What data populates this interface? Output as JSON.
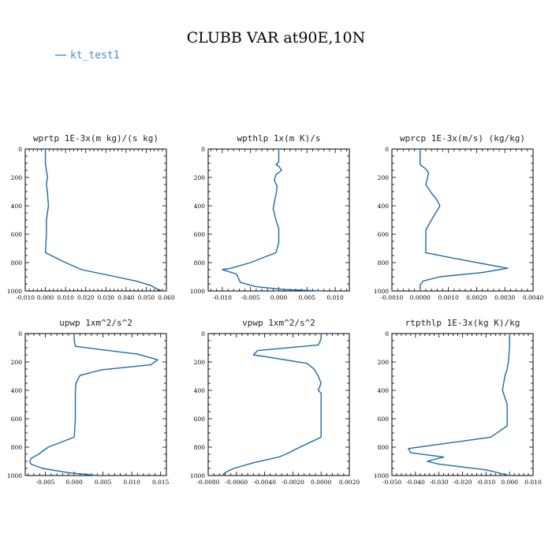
{
  "figure": {
    "title": "CLUBB VAR at90E,10N",
    "line_color": "#1f6aa8",
    "legend": [
      {
        "label": "kt_test1",
        "color": "#4a8fc4"
      }
    ]
  },
  "chart_data": [
    {
      "type": "line",
      "title": "wprtp  1E-3x(m kg)/(s kg)",
      "xlim": [
        -0.01,
        0.06
      ],
      "ylim": [
        0,
        1000
      ],
      "y_inverted": true,
      "x_ticks": [
        -0.01,
        0.0,
        0.01,
        0.02,
        0.03,
        0.04,
        0.05,
        0.06
      ],
      "x_tick_labels": [
        "-0.010",
        "0.000",
        "0.010",
        "0.020",
        "0.030",
        "0.040",
        "0.050",
        "0.060"
      ],
      "y_ticks": [
        0,
        200,
        400,
        600,
        800,
        1000
      ],
      "y_tick_labels": [
        "0",
        "200",
        "400",
        "600",
        "800",
        "1000"
      ],
      "series": [
        {
          "name": "kt_test1",
          "x": [
            0.0,
            0.0,
            0.0005,
            0.001,
            0.0005,
            0.001,
            0.0015,
            0.001,
            0.0005,
            0.0005,
            0.0,
            0.01,
            0.018,
            0.035,
            0.045,
            0.052,
            0.056,
            0.058
          ],
          "y": [
            0,
            100,
            150,
            200,
            250,
            300,
            400,
            450,
            500,
            600,
            730,
            800,
            850,
            900,
            930,
            960,
            990,
            1000
          ]
        }
      ]
    },
    {
      "type": "line",
      "title": "wpthlp  1x(m K)/s",
      "xlim": [
        -0.0125,
        0.0125
      ],
      "ylim": [
        0,
        1000
      ],
      "y_inverted": true,
      "x_ticks": [
        -0.01,
        -0.005,
        0.0,
        0.005,
        0.01
      ],
      "x_tick_labels": [
        "-0.010",
        "-0.005",
        "0.000",
        "0.005",
        "0.010"
      ],
      "y_ticks": [
        0,
        200,
        400,
        600,
        800,
        1000
      ],
      "y_tick_labels": [
        "0",
        "200",
        "400",
        "600",
        "800",
        "1000"
      ],
      "series": [
        {
          "name": "kt_test1",
          "x": [
            0.0,
            0.0,
            -0.0005,
            0.0,
            0.0005,
            -0.0005,
            -0.0008,
            -0.0003,
            -0.0004,
            -0.001,
            -0.0005,
            0.0,
            0.0,
            -0.0005,
            -0.005,
            -0.0085,
            -0.01,
            -0.0075,
            -0.0068,
            -0.004,
            0.001,
            0.008
          ],
          "y": [
            0,
            90,
            110,
            120,
            150,
            180,
            220,
            260,
            300,
            420,
            500,
            560,
            660,
            730,
            800,
            840,
            850,
            880,
            940,
            970,
            990,
            1000
          ]
        }
      ]
    },
    {
      "type": "line",
      "title": "wprcp  1E-3x(m/s) (kg/kg)",
      "xlim": [
        -0.001,
        0.004
      ],
      "ylim": [
        0,
        1000
      ],
      "y_inverted": true,
      "x_ticks": [
        -0.001,
        0.0,
        0.001,
        0.002,
        0.003,
        0.004
      ],
      "x_tick_labels": [
        "-0.0010",
        "0.0000",
        "0.0010",
        "0.0020",
        "0.0030",
        "0.0040"
      ],
      "y_ticks": [
        0,
        200,
        400,
        600,
        800,
        1000
      ],
      "y_tick_labels": [
        "0",
        "200",
        "400",
        "600",
        "800",
        "1000"
      ],
      "series": [
        {
          "name": "kt_test1",
          "x": [
            0.0,
            0.0,
            0.0002,
            0.0003,
            0.0002,
            0.0004,
            0.0006,
            0.0007,
            0.0004,
            0.0002,
            0.0002,
            0.0002,
            0.0012,
            0.0031,
            0.0022,
            0.0007,
            0.0001,
            0.0,
            0.0
          ],
          "y": [
            0,
            110,
            140,
            170,
            250,
            310,
            360,
            400,
            500,
            570,
            660,
            730,
            770,
            840,
            870,
            900,
            930,
            960,
            1000
          ]
        }
      ]
    },
    {
      "type": "line",
      "title": "upwp  1xm^2/s^2",
      "xlim": [
        -0.0085,
        0.016
      ],
      "ylim": [
        0,
        1000
      ],
      "y_inverted": true,
      "x_ticks": [
        -0.005,
        0.0,
        0.005,
        0.01,
        0.015
      ],
      "x_tick_labels": [
        "-0.005",
        "0.000",
        "0.005",
        "0.010",
        "0.015"
      ],
      "y_ticks": [
        0,
        200,
        400,
        600,
        800,
        1000
      ],
      "y_tick_labels": [
        "0",
        "200",
        "400",
        "600",
        "800",
        "1000"
      ],
      "series": [
        {
          "name": "kt_test1",
          "x": [
            0.0,
            0.0,
            0.0002,
            0.011,
            0.0145,
            0.0133,
            0.0048,
            0.001,
            0.0003,
            0.0002,
            0.0002,
            0.0,
            -0.0045,
            -0.0062,
            -0.0075,
            -0.0077,
            -0.0075,
            -0.0055,
            -0.001,
            0.004
          ],
          "y": [
            0,
            50,
            90,
            145,
            185,
            220,
            255,
            295,
            350,
            410,
            600,
            730,
            800,
            850,
            880,
            900,
            920,
            950,
            980,
            1000
          ]
        }
      ]
    },
    {
      "type": "line",
      "title": "vpwp  1xm^2/s^2",
      "xlim": [
        -0.008,
        0.002
      ],
      "ylim": [
        0,
        1000
      ],
      "y_inverted": true,
      "x_ticks": [
        -0.008,
        -0.006,
        -0.004,
        -0.002,
        0.0,
        0.002
      ],
      "x_tick_labels": [
        "-0.0080",
        "-0.0060",
        "-0.0040",
        "-0.0020",
        "0.0000",
        "0.0020"
      ],
      "y_ticks": [
        0,
        200,
        400,
        600,
        800,
        1000
      ],
      "y_tick_labels": [
        "0",
        "200",
        "400",
        "600",
        "800",
        "1000"
      ],
      "series": [
        {
          "name": "kt_test1",
          "x": [
            0.0,
            0.0,
            -0.0002,
            -0.0045,
            -0.0048,
            -0.0035,
            -0.001,
            -0.0005,
            -0.0002,
            0.0,
            -0.0002,
            0.0,
            0.0,
            0.0,
            -0.0015,
            -0.0025,
            -0.003,
            -0.0048,
            -0.0062,
            -0.0068,
            -0.007
          ],
          "y": [
            0,
            40,
            80,
            120,
            150,
            170,
            210,
            250,
            300,
            350,
            400,
            420,
            600,
            730,
            800,
            850,
            870,
            910,
            950,
            980,
            1000
          ]
        }
      ]
    },
    {
      "type": "line",
      "title": "rtpthlp  1E-3x(kg K)/kg",
      "xlim": [
        -0.05,
        0.01
      ],
      "ylim": [
        0,
        1000
      ],
      "y_inverted": true,
      "x_ticks": [
        -0.05,
        -0.04,
        -0.03,
        -0.02,
        -0.01,
        0.0,
        0.01
      ],
      "x_tick_labels": [
        "-0.050",
        "-0.040",
        "-0.030",
        "-0.020",
        "-0.010",
        "0.000",
        "0.010"
      ],
      "y_ticks": [
        0,
        200,
        400,
        600,
        800,
        1000
      ],
      "y_tick_labels": [
        "0",
        "200",
        "400",
        "600",
        "800",
        "1000"
      ],
      "series": [
        {
          "name": "kt_test1",
          "x": [
            0.0,
            0.0,
            -0.0005,
            -0.001,
            -0.002,
            -0.003,
            -0.002,
            -0.001,
            -0.001,
            -0.008,
            -0.043,
            -0.042,
            -0.028,
            -0.035,
            -0.03,
            -0.01,
            0.0
          ],
          "y": [
            0,
            100,
            200,
            250,
            300,
            400,
            450,
            500,
            650,
            730,
            810,
            840,
            870,
            900,
            920,
            960,
            1000
          ]
        }
      ]
    }
  ]
}
